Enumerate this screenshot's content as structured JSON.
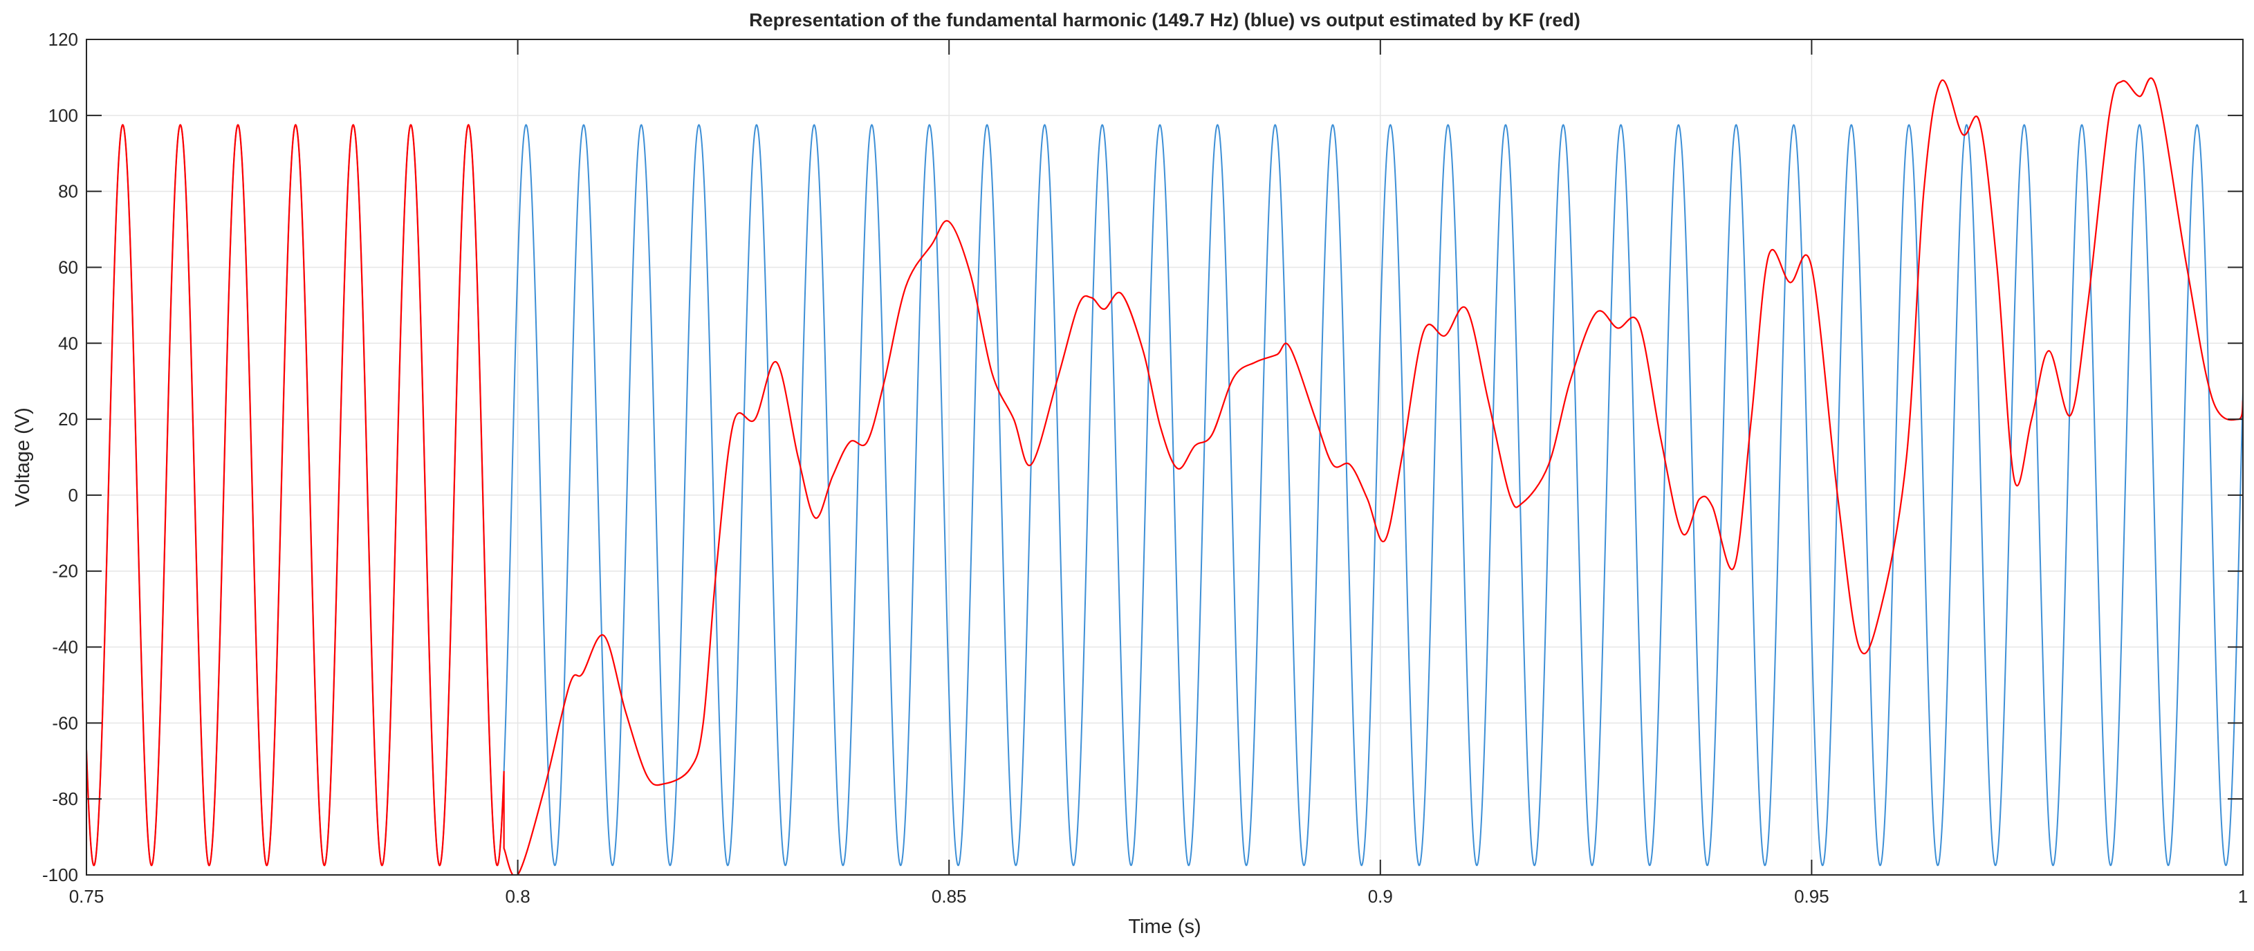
{
  "chart_data": {
    "type": "line",
    "title": "Representation of the fundamental harmonic (149.7 Hz) (blue) vs output estimated by KF (red)",
    "xlabel": "Time (s)",
    "ylabel": "Voltage (V)",
    "xlim": [
      0.75,
      1.0
    ],
    "ylim": [
      -100,
      120
    ],
    "xticks": [
      0.75,
      0.8,
      0.85,
      0.9,
      0.95,
      1.0
    ],
    "xtick_labels": [
      "0.75",
      "0.8",
      "0.85",
      "0.9",
      "0.95",
      "1"
    ],
    "yticks": [
      -100,
      -80,
      -60,
      -40,
      -20,
      0,
      20,
      40,
      60,
      80,
      100,
      120
    ],
    "ytick_labels": [
      "-100",
      "-80",
      "-60",
      "-40",
      "-20",
      "0",
      "20",
      "40",
      "60",
      "80",
      "100",
      "120"
    ],
    "grid": true,
    "legend": "none",
    "series": [
      {
        "id": "fundamental",
        "color": "#3d8fd6",
        "generator": "sine",
        "amplitude": 97.5,
        "frequency_hz": 149.7,
        "phase_rad": 3.9,
        "t_start": 0.75,
        "t_end": 1.0
      },
      {
        "id": "kf_estimate",
        "color": "#ff0000",
        "tracks_fundamental_until": 0.7984,
        "points": [
          [
            0.7984,
            -93
          ],
          [
            0.8,
            -100
          ],
          [
            0.803,
            -78
          ],
          [
            0.806,
            -50
          ],
          [
            0.8075,
            -47
          ],
          [
            0.81,
            -37
          ],
          [
            0.8125,
            -57
          ],
          [
            0.815,
            -74
          ],
          [
            0.817,
            -76
          ],
          [
            0.82,
            -72
          ],
          [
            0.8215,
            -60
          ],
          [
            0.823,
            -20
          ],
          [
            0.825,
            19
          ],
          [
            0.8275,
            20
          ],
          [
            0.83,
            35
          ],
          [
            0.8325,
            10
          ],
          [
            0.8345,
            -6
          ],
          [
            0.8365,
            5
          ],
          [
            0.8385,
            14
          ],
          [
            0.8405,
            14
          ],
          [
            0.8425,
            30
          ],
          [
            0.845,
            55
          ],
          [
            0.848,
            66
          ],
          [
            0.85,
            72
          ],
          [
            0.8525,
            58
          ],
          [
            0.855,
            32
          ],
          [
            0.8575,
            20
          ],
          [
            0.8595,
            8
          ],
          [
            0.8625,
            30
          ],
          [
            0.865,
            50
          ],
          [
            0.8665,
            52
          ],
          [
            0.868,
            49
          ],
          [
            0.87,
            53
          ],
          [
            0.8725,
            38
          ],
          [
            0.8745,
            18
          ],
          [
            0.8765,
            7
          ],
          [
            0.8785,
            13
          ],
          [
            0.8805,
            16
          ],
          [
            0.883,
            31
          ],
          [
            0.8855,
            35
          ],
          [
            0.888,
            37
          ],
          [
            0.8895,
            39
          ],
          [
            0.8925,
            20
          ],
          [
            0.8945,
            8
          ],
          [
            0.8965,
            8
          ],
          [
            0.8985,
            -1
          ],
          [
            0.9005,
            -12
          ],
          [
            0.9025,
            10
          ],
          [
            0.905,
            43
          ],
          [
            0.9075,
            42
          ],
          [
            0.91,
            49
          ],
          [
            0.9125,
            25
          ],
          [
            0.915,
            0
          ],
          [
            0.9165,
            -2
          ],
          [
            0.9195,
            8
          ],
          [
            0.922,
            30
          ],
          [
            0.925,
            48
          ],
          [
            0.9275,
            44
          ],
          [
            0.93,
            45
          ],
          [
            0.9325,
            15
          ],
          [
            0.935,
            -10
          ],
          [
            0.937,
            -1
          ],
          [
            0.9385,
            -3
          ],
          [
            0.941,
            -19
          ],
          [
            0.943,
            20
          ],
          [
            0.945,
            63
          ],
          [
            0.9475,
            56
          ],
          [
            0.95,
            60
          ],
          [
            0.953,
            0
          ],
          [
            0.9555,
            -40
          ],
          [
            0.958,
            -30
          ],
          [
            0.961,
            10
          ],
          [
            0.963,
            80
          ],
          [
            0.965,
            109
          ],
          [
            0.9675,
            95
          ],
          [
            0.9695,
            98
          ],
          [
            0.9715,
            60
          ],
          [
            0.9735,
            4
          ],
          [
            0.9755,
            20
          ],
          [
            0.9775,
            38
          ],
          [
            0.98,
            21
          ],
          [
            0.982,
            50
          ],
          [
            0.9845,
            100
          ],
          [
            0.986,
            109
          ],
          [
            0.988,
            105
          ],
          [
            0.99,
            107
          ],
          [
            0.9935,
            60
          ],
          [
            0.9965,
            25
          ],
          [
            0.9995,
            20
          ],
          [
            1.0,
            25
          ]
        ]
      }
    ]
  }
}
